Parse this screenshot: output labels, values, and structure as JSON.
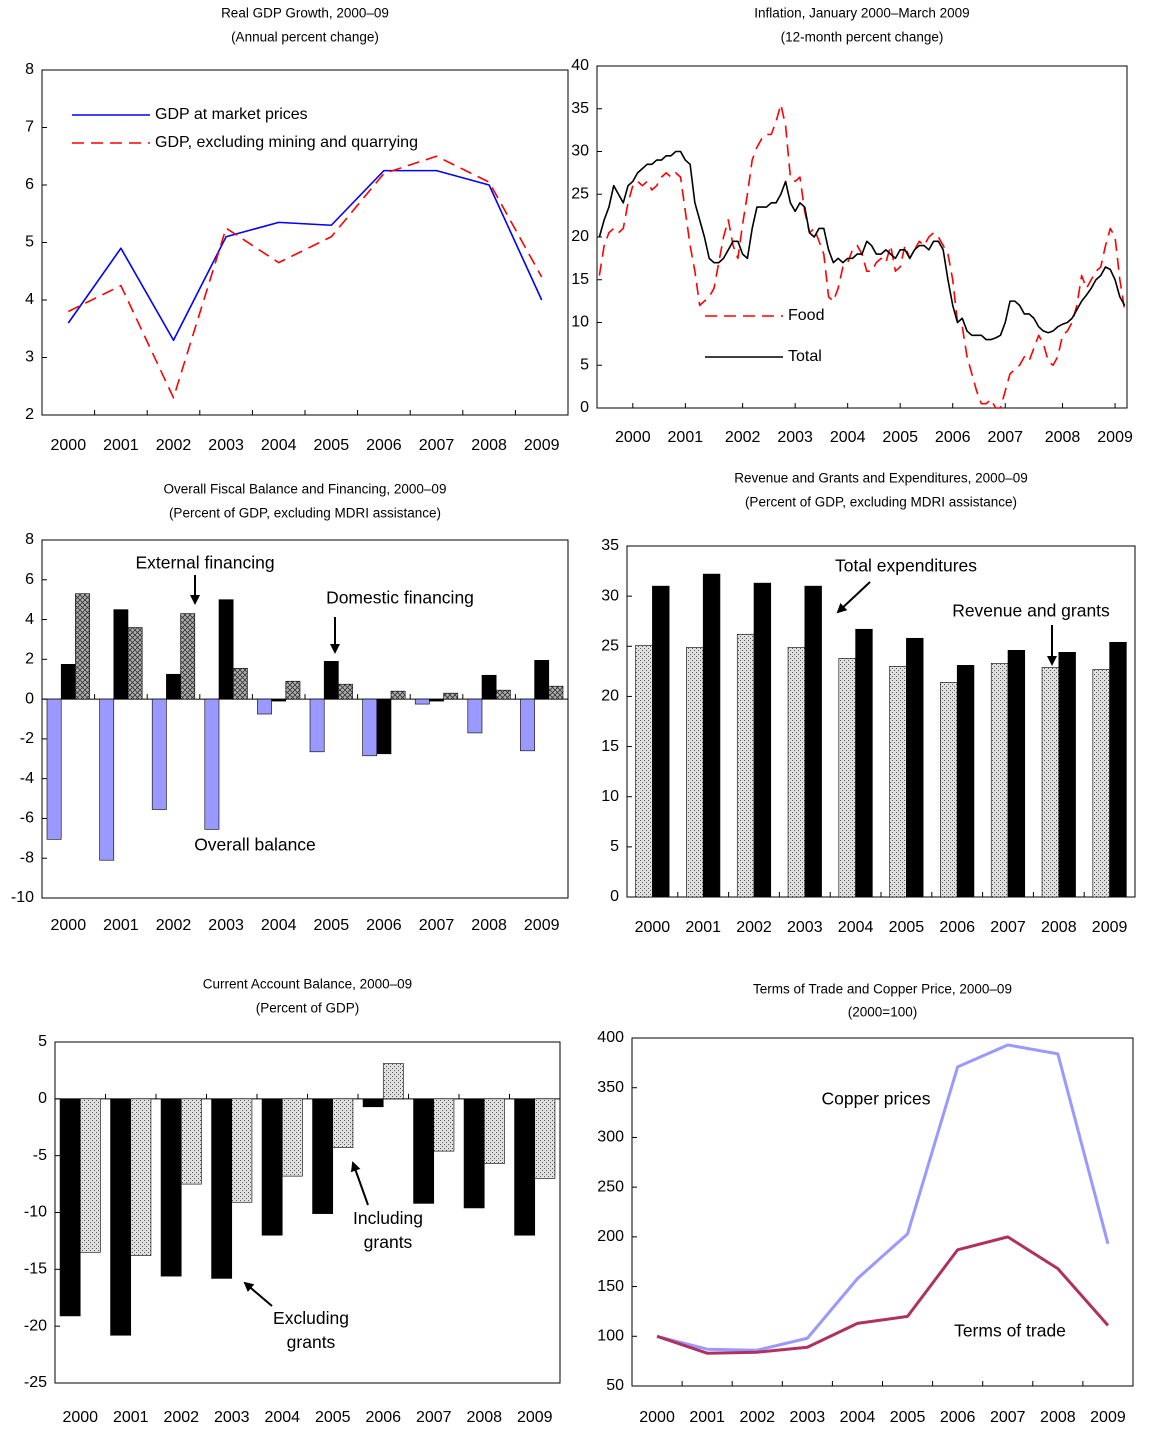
{
  "chart_data": [
    {
      "type": "line",
      "title": "Real GDP Growth, 2000–09",
      "subtitle": "(Annual percent change)",
      "categories": [
        "2000",
        "2001",
        "2002",
        "2003",
        "2004",
        "2005",
        "2006",
        "2007",
        "2008",
        "2009"
      ],
      "series": [
        {
          "name": "GDP at market prices",
          "color": "#0000ff",
          "style": "solid",
          "values": [
            3.6,
            4.9,
            3.3,
            5.1,
            5.35,
            5.3,
            6.25,
            6.25,
            6.0,
            4.0
          ]
        },
        {
          "name": "GDP, excluding mining and quarrying",
          "color": "#ff0000",
          "style": "dashed",
          "values": [
            3.8,
            4.25,
            2.3,
            5.25,
            4.65,
            5.1,
            6.2,
            6.5,
            6.05,
            4.4
          ]
        }
      ],
      "ylim": [
        2,
        8
      ],
      "yticks": [
        2,
        3,
        4,
        5,
        6,
        7,
        8
      ],
      "legend": "upper-left"
    },
    {
      "type": "line",
      "title": "Inflation, January 2000–March 2009",
      "subtitle": "(12-month percent change)",
      "categories": [
        null,
        null,
        null,
        null,
        null,
        null,
        null,
        "2000",
        null,
        null,
        null,
        null,
        null,
        null,
        null,
        null,
        null,
        null,
        "2001",
        null,
        null,
        null,
        null,
        null,
        null,
        null,
        null,
        null,
        null,
        null,
        "2002",
        null,
        null,
        null,
        null,
        null,
        null,
        null,
        null,
        null,
        null,
        "2003",
        null,
        null,
        null,
        null,
        null,
        null,
        null,
        null,
        null,
        null,
        "2004",
        null,
        null,
        null,
        null,
        null,
        null,
        null,
        null,
        null,
        null,
        "2005",
        null,
        null,
        null,
        null,
        null,
        null,
        null,
        null,
        null,
        null,
        "2006",
        null,
        null,
        null,
        null,
        null,
        null,
        null,
        null,
        null,
        null,
        "2007",
        null,
        null,
        null,
        null,
        null,
        null,
        null,
        null,
        null,
        null,
        null,
        "2008",
        null,
        null,
        null,
        null,
        null,
        null,
        null,
        null,
        null,
        null,
        "2009",
        null,
        null
      ],
      "series": [
        {
          "name": "Food",
          "color": "#ff0000",
          "style": "dashed",
          "values": [
            15.5,
            19,
            20.5,
            21,
            20.5,
            21,
            24,
            26,
            26.5,
            26,
            26.5,
            25.5,
            26,
            27,
            27.5,
            27,
            27.5,
            27,
            23,
            19,
            16,
            12,
            12.5,
            13,
            14,
            17,
            20,
            22,
            19,
            17.5,
            21.5,
            25,
            29,
            30.5,
            31.5,
            32,
            32,
            33.5,
            35.5,
            33,
            27,
            26.5,
            27,
            23,
            20.5,
            21,
            19.5,
            18,
            13,
            12.5,
            14,
            16.5,
            17,
            18.5,
            19,
            18,
            16,
            16,
            17,
            17.5,
            17,
            19,
            16,
            16.5,
            19,
            17.5,
            18.5,
            19.5,
            19,
            20,
            20.5,
            20,
            19,
            18,
            15,
            10,
            9.5,
            6,
            4,
            2,
            0.5,
            0.5,
            1,
            0,
            0,
            2,
            4,
            4.5,
            5,
            6,
            5.5,
            7,
            8.5,
            7.5,
            5.5,
            5,
            6,
            8.5,
            9,
            10,
            12,
            15.5,
            14,
            15,
            16,
            16.5,
            19,
            21,
            20,
            15,
            11.5
          ]
        },
        {
          "name": "Total",
          "color": "#000000",
          "style": "solid",
          "values": [
            20,
            22,
            23.5,
            26,
            25,
            24,
            26,
            26.5,
            27.5,
            28,
            28.5,
            28.5,
            29,
            29,
            29.5,
            29.5,
            30,
            30,
            29,
            28.5,
            24,
            22,
            20,
            17.5,
            17,
            17,
            17.5,
            18.5,
            19.5,
            19.5,
            18,
            17.5,
            21,
            23.5,
            23.5,
            23.5,
            24,
            24,
            25,
            26.5,
            24,
            23,
            24,
            23.5,
            20.5,
            20,
            21,
            21,
            18.5,
            17,
            17.5,
            17,
            17.5,
            17.5,
            18,
            18,
            19.5,
            19,
            18,
            18,
            18.5,
            18,
            17.5,
            18.5,
            18.5,
            17.5,
            18.5,
            19,
            19,
            18.5,
            19.5,
            19.5,
            18.5,
            15,
            12,
            10,
            10.5,
            9,
            8.5,
            8.5,
            8.5,
            8,
            8,
            8.2,
            8.5,
            10,
            12.5,
            12.5,
            12,
            11,
            11,
            10.5,
            9.5,
            9,
            8.8,
            9,
            9.5,
            9.8,
            10,
            10.5,
            11.5,
            12.5,
            13.2,
            14,
            15,
            15.5,
            16.5,
            16.2,
            15,
            13,
            12
          ]
        }
      ],
      "ylim": [
        0,
        40
      ],
      "yticks": [
        0,
        5,
        10,
        15,
        20,
        25,
        30,
        35,
        40
      ],
      "legend": "lower-center"
    },
    {
      "type": "bar",
      "title": "Overall Fiscal Balance and Financing, 2000–09",
      "subtitle": "(Percent of GDP, excluding MDRI assistance)",
      "categories": [
        "2000",
        "2001",
        "2002",
        "2003",
        "2004",
        "2005",
        "2006",
        "2007",
        "2008",
        "2009"
      ],
      "series": [
        {
          "name": "Overall balance",
          "color": "#9999ff",
          "values": [
            -7.05,
            -8.1,
            -5.55,
            -6.55,
            -0.75,
            -2.65,
            -2.85,
            -0.25,
            -1.7,
            -2.6
          ]
        },
        {
          "name": "Domestic financing",
          "color": "#000000",
          "values": [
            1.75,
            4.5,
            1.25,
            5.0,
            -0.1,
            1.9,
            -2.75,
            -0.1,
            1.2,
            1.95
          ]
        },
        {
          "name": "External financing",
          "color": "#b0b0b0",
          "pattern": "crosshatch",
          "values": [
            5.3,
            3.6,
            4.3,
            1.55,
            0.9,
            0.75,
            0.4,
            0.3,
            0.45,
            0.65
          ]
        }
      ],
      "ylim": [
        -10,
        8
      ],
      "yticks": [
        -10,
        -8,
        -6,
        -4,
        -2,
        0,
        2,
        4,
        6,
        8
      ]
    },
    {
      "type": "bar",
      "title": "Revenue and Grants and Expenditures, 2000–09",
      "subtitle": "(Percent of GDP, excluding MDRI assistance)",
      "categories": [
        "2000",
        "2001",
        "2002",
        "2003",
        "2004",
        "2005",
        "2006",
        "2007",
        "2008",
        "2009"
      ],
      "series": [
        {
          "name": "Revenue and grants",
          "color": "#e0e0e0",
          "pattern": "dots",
          "values": [
            25.1,
            24.9,
            26.2,
            24.9,
            23.8,
            23.0,
            21.4,
            23.3,
            22.9,
            22.7
          ]
        },
        {
          "name": "Total expenditures",
          "color": "#000000",
          "values": [
            31.0,
            32.2,
            31.3,
            31.0,
            26.7,
            25.8,
            23.1,
            24.6,
            24.4,
            25.4
          ]
        }
      ],
      "ylim": [
        0,
        35
      ],
      "yticks": [
        0,
        5,
        10,
        15,
        20,
        25,
        30,
        35
      ]
    },
    {
      "type": "bar",
      "title": "Current Account Balance, 2000–09",
      "subtitle": "(Percent of GDP)",
      "categories": [
        "2000",
        "2001",
        "2002",
        "2003",
        "2004",
        "2005",
        "2006",
        "2007",
        "2008",
        "2009"
      ],
      "series": [
        {
          "name": "Excluding grants",
          "color": "#000000",
          "values": [
            -19.1,
            -20.8,
            -15.6,
            -15.8,
            -12.0,
            -10.1,
            -0.7,
            -9.2,
            -9.6,
            -12.0
          ]
        },
        {
          "name": "Including grants",
          "color": "#e0e0e0",
          "pattern": "dots",
          "values": [
            -13.5,
            -13.8,
            -7.5,
            -9.1,
            -6.8,
            -4.3,
            3.1,
            -4.6,
            -5.7,
            -7.0
          ]
        }
      ],
      "ylim": [
        -25,
        5
      ],
      "yticks": [
        -25,
        -20,
        -15,
        -10,
        -5,
        0,
        5
      ]
    },
    {
      "type": "line",
      "title": "Terms of Trade and Copper Price, 2000–09",
      "subtitle": "(2000=100)",
      "categories": [
        "2000",
        "2001",
        "2002",
        "2003",
        "2004",
        "2005",
        "2006",
        "2007",
        "2008",
        "2009"
      ],
      "series": [
        {
          "name": "Copper prices",
          "color": "#9999ff",
          "style": "solid",
          "values": [
            100,
            87,
            86,
            98,
            158,
            203,
            371,
            393,
            384,
            193
          ]
        },
        {
          "name": "Terms of trade",
          "color": "#b03060",
          "style": "solid",
          "values": [
            100,
            83,
            84,
            89,
            113,
            120,
            187,
            200,
            168,
            111
          ]
        }
      ],
      "ylim": [
        50,
        400
      ],
      "yticks": [
        50,
        100,
        150,
        200,
        250,
        300,
        350,
        400
      ]
    }
  ]
}
